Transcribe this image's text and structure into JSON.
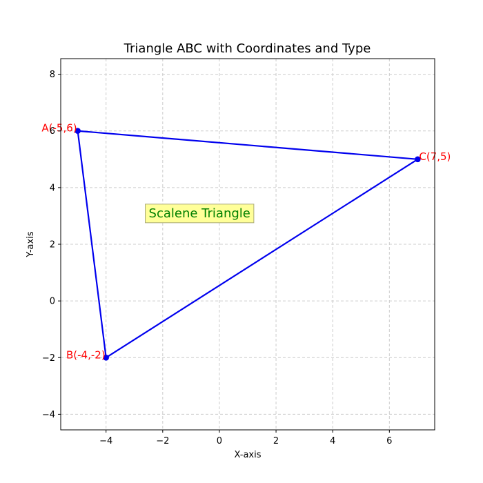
{
  "chart_data": {
    "type": "line",
    "title": "Triangle ABC with Coordinates and Type",
    "xlabel": "X-axis",
    "ylabel": "Y-axis",
    "xlim": [
      -5.6,
      7.6
    ],
    "ylim": [
      -4.55,
      8.55
    ],
    "xticks": [
      -4,
      -2,
      0,
      2,
      4,
      6
    ],
    "yticks": [
      -4,
      -2,
      0,
      2,
      4,
      6,
      8
    ],
    "grid": true,
    "series": [
      {
        "points": [
          {
            "x": -5,
            "y": 6,
            "label": "A(-5,6)",
            "label_anchor": "end"
          },
          {
            "x": -4,
            "y": -2,
            "label": "B(-4,-2)",
            "label_anchor": "end"
          },
          {
            "x": 7,
            "y": 5,
            "label": "C(7,5)",
            "label_anchor": "start"
          }
        ],
        "closed": true
      }
    ],
    "annotation": {
      "text": "Scalene Triangle",
      "x": -0.7,
      "y": 3.1
    },
    "colors": {
      "line": "#0000ee",
      "vertex_label": "#ff0000",
      "annotation_text": "#008000",
      "annotation_bg": "#ffff99",
      "grid": "#cccccc"
    }
  }
}
